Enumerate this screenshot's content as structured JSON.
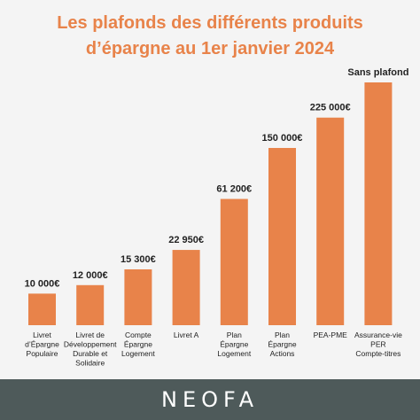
{
  "title_line1": "Les plafonds des différents produits",
  "title_line2": "d’épargne au 1er janvier 2024",
  "brand": "NEOFA",
  "colors": {
    "title": "#e8834a",
    "bar": "#e8834a",
    "footer": "#4e5a5a",
    "background": "#f4f4f4"
  },
  "chart_data": {
    "type": "bar",
    "categories": [
      [
        "Livret",
        "d’Épargne",
        "Populaire"
      ],
      [
        "Livret de",
        "Développement",
        "Durable et",
        "Solidaire"
      ],
      [
        "Compte",
        "Épargne",
        "Logement"
      ],
      [
        "Livret A"
      ],
      [
        "Plan",
        "Épargne",
        "Logement"
      ],
      [
        "Plan",
        "Épargne",
        "Actions"
      ],
      [
        "PEA-PME"
      ],
      [
        "Assurance-vie",
        "PER",
        "Compte-titres"
      ]
    ],
    "values": [
      10000,
      12000,
      15300,
      22950,
      61200,
      150000,
      225000,
      null
    ],
    "value_labels": [
      "10 000€",
      "12 000€",
      "15 300€",
      "22 950€",
      "61 200€",
      "150 000€",
      "225 000€",
      "Sans plafond"
    ],
    "bar_levels": [
      0.13,
      0.165,
      0.23,
      0.31,
      0.52,
      0.73,
      0.855,
      1.0
    ],
    "title": "Les plafonds des différents produits d’épargne au 1er janvier 2024",
    "xlabel": "",
    "ylabel": "",
    "grid": false,
    "legend": "none"
  }
}
